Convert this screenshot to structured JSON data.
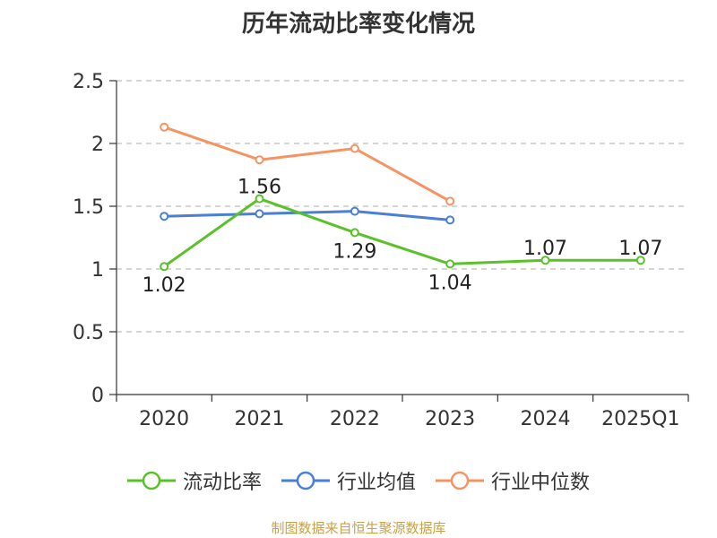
{
  "page": {
    "title": "历年流动比率变化情况",
    "source": "制图数据来自恒生聚源数据库"
  },
  "chart_data": {
    "type": "line",
    "title": "历年流动比率变化情况",
    "xlabel": "",
    "ylabel": "",
    "categories": [
      "2020",
      "2021",
      "2022",
      "2023",
      "2024",
      "2025Q1"
    ],
    "ylim": [
      0,
      2.5
    ],
    "yticks": [
      0,
      0.5,
      1,
      1.5,
      2,
      2.5
    ],
    "ytick_labels": [
      "0",
      "0.5",
      "1",
      "1.5",
      "2",
      "2.5"
    ],
    "grid": true,
    "legend_position": "bottom",
    "series": [
      {
        "name": "流动比率",
        "color": "#5ac12a",
        "values": [
          1.02,
          1.56,
          1.29,
          1.04,
          1.07,
          1.07
        ],
        "labels": [
          "1.02",
          "1.56",
          "1.29",
          "1.04",
          "1.07",
          "1.07"
        ]
      },
      {
        "name": "行业均值",
        "color": "#4a7fd6",
        "values": [
          1.42,
          1.44,
          1.46,
          1.39,
          null,
          null
        ],
        "labels": []
      },
      {
        "name": "行业中位数",
        "color": "#f59463",
        "values": [
          2.13,
          1.87,
          1.96,
          1.54,
          null,
          null
        ],
        "labels": []
      }
    ]
  }
}
